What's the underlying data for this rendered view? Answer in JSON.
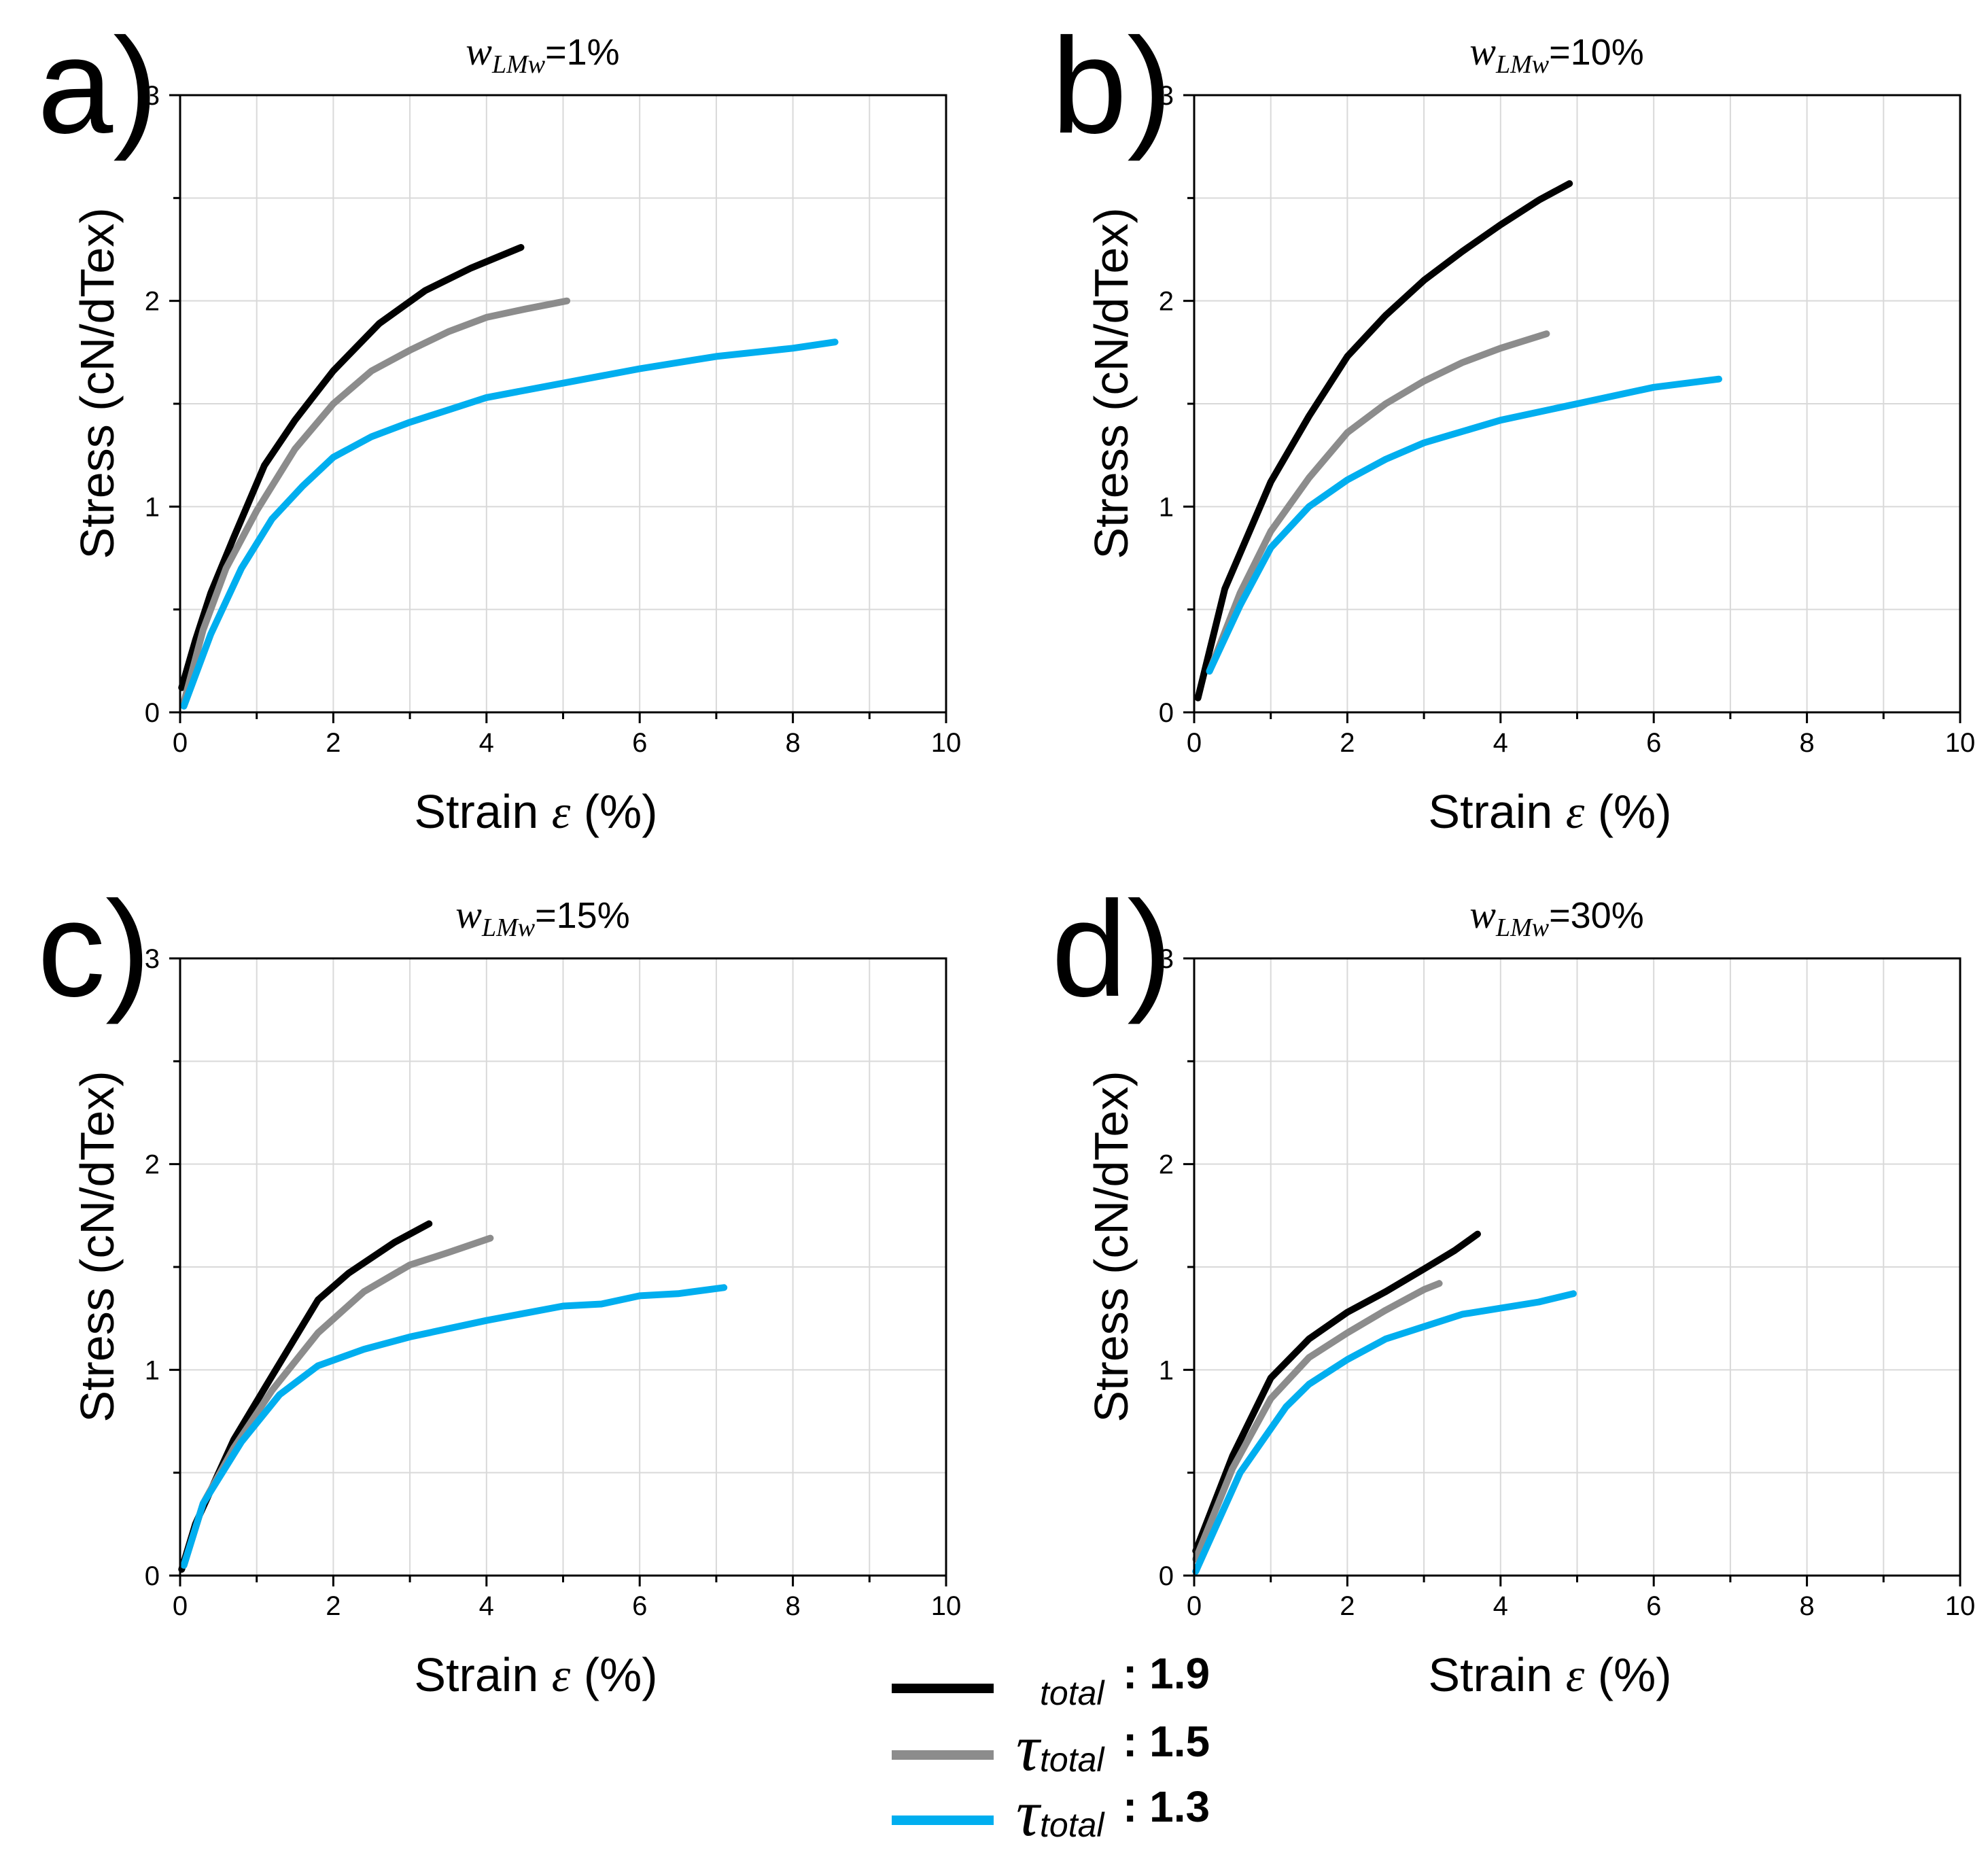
{
  "figure": {
    "legend": [
      {
        "symbol": "",
        "subscript": "total",
        "value": ": 1.9",
        "color": "#000000"
      },
      {
        "symbol": "τ",
        "subscript": "total",
        "value": ": 1.5",
        "color": "#8c8c8c"
      },
      {
        "symbol": "τ",
        "subscript": "total",
        "value": ": 1.3",
        "color": "#00aeef"
      }
    ]
  },
  "chart_data": [
    {
      "type": "line",
      "panel_letter": "a",
      "title_var": "w",
      "title_sub": "LMw",
      "title_value": "=1%",
      "xlabel": "Strain",
      "xlabel_symbol": "ε",
      "xlabel_unit": "(%)",
      "ylabel": "Stress (cN/dTex)",
      "xlim": [
        0,
        10
      ],
      "ylim": [
        0,
        3
      ],
      "xticks": [
        "0",
        "2",
        "4",
        "6",
        "8",
        "10"
      ],
      "yticks": [
        "0",
        "1",
        "2",
        "3"
      ],
      "grid": true,
      "series": [
        {
          "color": "#000000",
          "points": [
            [
              0.02,
              0.12
            ],
            [
              0.2,
              0.35
            ],
            [
              0.4,
              0.58
            ],
            [
              0.7,
              0.85
            ],
            [
              1.1,
              1.2
            ],
            [
              1.5,
              1.42
            ],
            [
              2.0,
              1.66
            ],
            [
              2.6,
              1.89
            ],
            [
              3.2,
              2.05
            ],
            [
              3.8,
              2.16
            ],
            [
              4.45,
              2.26
            ]
          ]
        },
        {
          "color": "#8c8c8c",
          "points": [
            [
              0.05,
              0.05
            ],
            [
              0.3,
              0.4
            ],
            [
              0.6,
              0.7
            ],
            [
              1.0,
              0.98
            ],
            [
              1.5,
              1.28
            ],
            [
              2.0,
              1.5
            ],
            [
              2.5,
              1.66
            ],
            [
              3.0,
              1.76
            ],
            [
              3.5,
              1.85
            ],
            [
              4.0,
              1.92
            ],
            [
              4.5,
              1.96
            ],
            [
              5.05,
              2.0
            ]
          ]
        },
        {
          "color": "#00aeef",
          "points": [
            [
              0.05,
              0.03
            ],
            [
              0.4,
              0.38
            ],
            [
              0.8,
              0.7
            ],
            [
              1.2,
              0.94
            ],
            [
              1.6,
              1.1
            ],
            [
              2.0,
              1.24
            ],
            [
              2.5,
              1.34
            ],
            [
              3.0,
              1.41
            ],
            [
              3.5,
              1.47
            ],
            [
              4.0,
              1.53
            ],
            [
              5.0,
              1.6
            ],
            [
              6.0,
              1.67
            ],
            [
              7.0,
              1.73
            ],
            [
              8.0,
              1.77
            ],
            [
              8.55,
              1.8
            ]
          ]
        }
      ]
    },
    {
      "type": "line",
      "panel_letter": "b",
      "title_var": "w",
      "title_sub": "LMw",
      "title_value": "=10%",
      "xlabel": "Strain",
      "xlabel_symbol": "ε",
      "xlabel_unit": "(%)",
      "ylabel": "Stress (cN/dTex)",
      "xlim": [
        0,
        10
      ],
      "ylim": [
        0,
        3
      ],
      "xticks": [
        "0",
        "2",
        "4",
        "6",
        "8",
        "10"
      ],
      "yticks": [
        "0",
        "1",
        "2",
        "3"
      ],
      "grid": true,
      "series": [
        {
          "color": "#000000",
          "points": [
            [
              0.05,
              0.07
            ],
            [
              0.4,
              0.6
            ],
            [
              1.0,
              1.12
            ],
            [
              1.5,
              1.44
            ],
            [
              2.0,
              1.73
            ],
            [
              2.5,
              1.93
            ],
            [
              3.0,
              2.1
            ],
            [
              3.5,
              2.24
            ],
            [
              4.0,
              2.37
            ],
            [
              4.5,
              2.49
            ],
            [
              4.9,
              2.57
            ]
          ]
        },
        {
          "color": "#8c8c8c",
          "points": [
            [
              0.2,
              0.2
            ],
            [
              0.6,
              0.58
            ],
            [
              1.0,
              0.88
            ],
            [
              1.5,
              1.14
            ],
            [
              2.0,
              1.36
            ],
            [
              2.5,
              1.5
            ],
            [
              3.0,
              1.61
            ],
            [
              3.5,
              1.7
            ],
            [
              4.0,
              1.77
            ],
            [
              4.6,
              1.84
            ]
          ]
        },
        {
          "color": "#00aeef",
          "points": [
            [
              0.2,
              0.2
            ],
            [
              0.6,
              0.52
            ],
            [
              1.0,
              0.8
            ],
            [
              1.5,
              1.0
            ],
            [
              2.0,
              1.13
            ],
            [
              2.5,
              1.23
            ],
            [
              3.0,
              1.31
            ],
            [
              4.0,
              1.42
            ],
            [
              5.0,
              1.5
            ],
            [
              6.0,
              1.58
            ],
            [
              6.85,
              1.62
            ]
          ]
        }
      ]
    },
    {
      "type": "line",
      "panel_letter": "c",
      "title_var": "w",
      "title_sub": "LMw",
      "title_value": "=15%",
      "xlabel": "Strain",
      "xlabel_symbol": "ε",
      "xlabel_unit": "(%)",
      "ylabel": "Stress (cN/dTex)",
      "xlim": [
        0,
        10
      ],
      "ylim": [
        0,
        3
      ],
      "xticks": [
        "0",
        "2",
        "4",
        "6",
        "8",
        "10"
      ],
      "yticks": [
        "0",
        "1",
        "2",
        "3"
      ],
      "grid": true,
      "series": [
        {
          "color": "#000000",
          "points": [
            [
              0.02,
              0.03
            ],
            [
              0.2,
              0.25
            ],
            [
              0.7,
              0.66
            ],
            [
              1.2,
              0.97
            ],
            [
              1.8,
              1.34
            ],
            [
              2.2,
              1.47
            ],
            [
              2.8,
              1.62
            ],
            [
              3.25,
              1.71
            ]
          ]
        },
        {
          "color": "#8c8c8c",
          "points": [
            [
              0.05,
              0.05
            ],
            [
              0.3,
              0.35
            ],
            [
              0.7,
              0.62
            ],
            [
              1.2,
              0.9
            ],
            [
              1.8,
              1.18
            ],
            [
              2.4,
              1.38
            ],
            [
              3.0,
              1.51
            ],
            [
              3.5,
              1.57
            ],
            [
              4.05,
              1.64
            ]
          ]
        },
        {
          "color": "#00aeef",
          "points": [
            [
              0.05,
              0.05
            ],
            [
              0.3,
              0.35
            ],
            [
              0.8,
              0.65
            ],
            [
              1.3,
              0.88
            ],
            [
              1.8,
              1.02
            ],
            [
              2.4,
              1.1
            ],
            [
              3.0,
              1.16
            ],
            [
              4.0,
              1.24
            ],
            [
              5.0,
              1.31
            ],
            [
              5.5,
              1.32
            ],
            [
              6.0,
              1.36
            ],
            [
              6.5,
              1.37
            ],
            [
              7.1,
              1.4
            ]
          ]
        }
      ]
    },
    {
      "type": "line",
      "panel_letter": "d",
      "title_var": "w",
      "title_sub": "LMw",
      "title_value": "=30%",
      "xlabel": "Strain",
      "xlabel_symbol": "ε",
      "xlabel_unit": "(%)",
      "ylabel": "Stress (cN/dTex)",
      "xlim": [
        0,
        10
      ],
      "ylim": [
        0,
        3
      ],
      "xticks": [
        "0",
        "2",
        "4",
        "6",
        "8",
        "10"
      ],
      "yticks": [
        "0",
        "1",
        "2",
        "3"
      ],
      "grid": true,
      "series": [
        {
          "color": "#000000",
          "points": [
            [
              0.02,
              0.12
            ],
            [
              0.5,
              0.58
            ],
            [
              1.0,
              0.96
            ],
            [
              1.5,
              1.15
            ],
            [
              2.0,
              1.28
            ],
            [
              2.5,
              1.38
            ],
            [
              3.0,
              1.49
            ],
            [
              3.4,
              1.58
            ],
            [
              3.7,
              1.66
            ]
          ]
        },
        {
          "color": "#8c8c8c",
          "points": [
            [
              0.02,
              0.08
            ],
            [
              0.5,
              0.52
            ],
            [
              1.0,
              0.86
            ],
            [
              1.5,
              1.06
            ],
            [
              2.0,
              1.18
            ],
            [
              2.5,
              1.29
            ],
            [
              3.0,
              1.39
            ],
            [
              3.2,
              1.42
            ]
          ]
        },
        {
          "color": "#00aeef",
          "points": [
            [
              0.02,
              0.02
            ],
            [
              0.6,
              0.5
            ],
            [
              1.2,
              0.82
            ],
            [
              1.5,
              0.93
            ],
            [
              2.0,
              1.05
            ],
            [
              2.5,
              1.15
            ],
            [
              3.0,
              1.21
            ],
            [
              3.5,
              1.27
            ],
            [
              4.5,
              1.33
            ],
            [
              4.95,
              1.37
            ]
          ]
        }
      ]
    }
  ]
}
